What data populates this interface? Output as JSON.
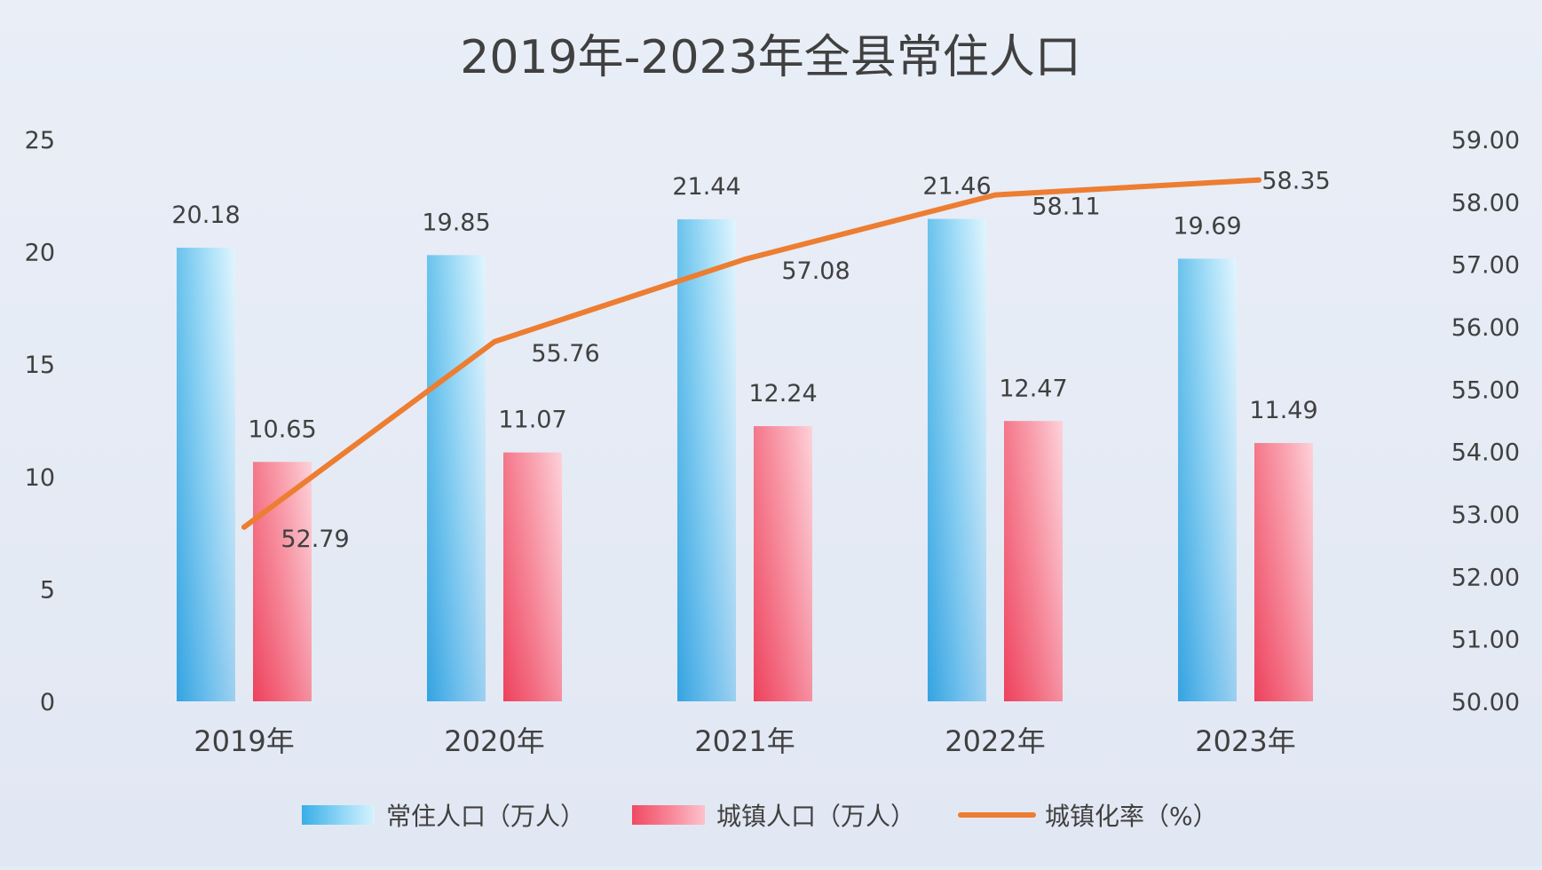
{
  "chart_data": {
    "type": "bar",
    "title": "2019年-2023年全县常住人口",
    "categories": [
      "2019年",
      "2020年",
      "2021年",
      "2022年",
      "2023年"
    ],
    "series": [
      {
        "name": "常住人口（万人）",
        "type": "bar",
        "axis": "left",
        "color": "#3fb6ea",
        "values": [
          20.18,
          19.85,
          21.44,
          21.46,
          19.69
        ],
        "labels": [
          "20.18",
          "19.85",
          "21.44",
          "21.46",
          "19.69"
        ]
      },
      {
        "name": "城镇人口（万人）",
        "type": "bar",
        "axis": "left",
        "color": "#f25d74",
        "values": [
          10.65,
          11.07,
          12.24,
          12.47,
          11.49
        ],
        "labels": [
          "10.65",
          "11.07",
          "12.24",
          "12.47",
          "11.49"
        ]
      },
      {
        "name": "城镇化率（%）",
        "type": "line",
        "axis": "right",
        "color": "#ed7d31",
        "values": [
          52.79,
          55.76,
          57.08,
          58.11,
          58.35
        ],
        "labels": [
          "52.79",
          "55.76",
          "57.08",
          "58.11",
          "58.35"
        ]
      }
    ],
    "y_left": {
      "range": [
        0,
        25
      ],
      "ticks": [
        0,
        5,
        10,
        15,
        20,
        25
      ],
      "tick_labels": [
        "0",
        "5",
        "10",
        "15",
        "20",
        "25"
      ]
    },
    "y_right": {
      "range": [
        50,
        59
      ],
      "ticks": [
        50,
        51,
        52,
        53,
        54,
        55,
        56,
        57,
        58,
        59
      ],
      "tick_labels": [
        "50.00",
        "51.00",
        "52.00",
        "53.00",
        "54.00",
        "55.00",
        "56.00",
        "57.00",
        "58.00",
        "59.00"
      ]
    },
    "xlabel": "",
    "ylabel": "",
    "grid": false,
    "legend_position": "bottom"
  }
}
